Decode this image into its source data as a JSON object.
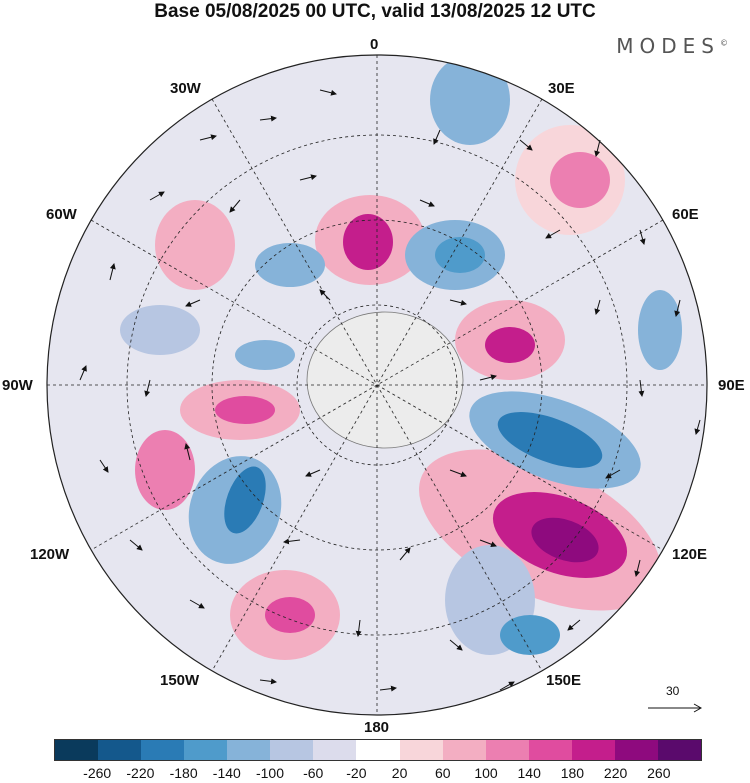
{
  "title": "Base 05/08/2025 00 UTC, valid 13/08/2025 12 UTC",
  "logo": "MODES",
  "logo_mark": "©",
  "longitude_labels": {
    "lon_0": "0",
    "lon_30e": "30E",
    "lon_60e": "60E",
    "lon_90e": "90E",
    "lon_120e": "120E",
    "lon_150e": "150E",
    "lon_180": "180",
    "lon_150w": "150W",
    "lon_120w": "120W",
    "lon_90w": "90W",
    "lon_60w": "60W",
    "lon_30w": "30W"
  },
  "reference_vector": "30",
  "colorbar": {
    "tick_labels": [
      "-260",
      "-220",
      "-180",
      "-140",
      "-100",
      "-60",
      "-20",
      "20",
      "60",
      "100",
      "140",
      "180",
      "220",
      "260"
    ],
    "colors": [
      "#0a3a5c",
      "#14588c",
      "#2a7bb5",
      "#4f9bcb",
      "#86b3d9",
      "#b7c6e2",
      "#dcdcec",
      "#ffffff",
      "#f8d6da",
      "#f3aec2",
      "#ec7fb1",
      "#e04c9f",
      "#c41e8c",
      "#8e0a7e",
      "#5a0a6c"
    ]
  }
}
